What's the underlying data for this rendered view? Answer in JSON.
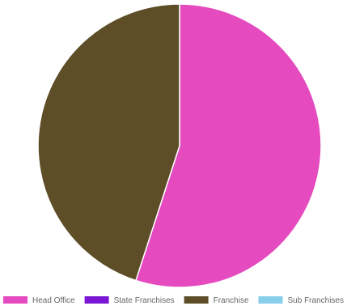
{
  "chart_data": {
    "type": "pie",
    "title": "",
    "categories": [
      "Head Office",
      "State Franchises",
      "Franchise",
      "Sub Franchises"
    ],
    "values": [
      55,
      0,
      45,
      0
    ],
    "colors": [
      "#e54abf",
      "#7a16d4",
      "#5d4e27",
      "#87ceeb"
    ],
    "slice_border_color": "#ffffff",
    "legend_position": "bottom"
  }
}
